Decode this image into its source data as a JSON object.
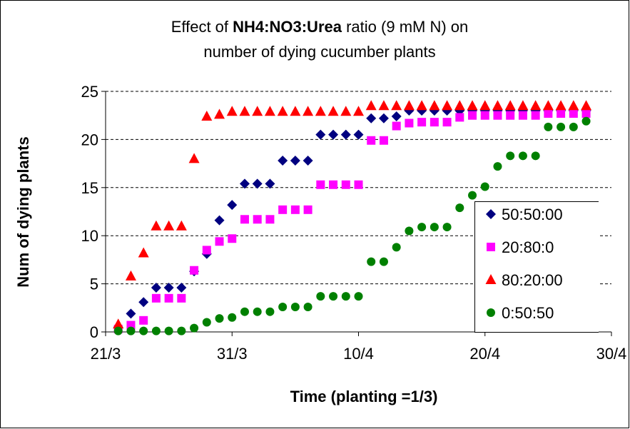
{
  "chart_data": {
    "type": "scatter",
    "title": {
      "prefix": "Effect of",
      "emphasis": "NH4:NO3:Urea",
      "suffix": "ratio (9 mM N) on",
      "line2": "number of dying cucumber plants"
    },
    "x_label": "Time (planting =1/3)",
    "y_label": "Num of dying plants",
    "x": [
      "22/3",
      "23/3",
      "24/3",
      "25/3",
      "26/3",
      "27/3",
      "28/3",
      "29/3",
      "30/3",
      "31/3",
      "1/4",
      "2/4",
      "3/4",
      "4/4",
      "5/4",
      "6/4",
      "7/4",
      "8/4",
      "9/4",
      "10/4",
      "11/4",
      "12/4",
      "13/4",
      "14/4",
      "15/4",
      "16/4",
      "17/4",
      "18/4",
      "19/4",
      "20/4",
      "21/4",
      "22/4",
      "23/4",
      "24/4",
      "25/4",
      "26/4",
      "27/4",
      "28/4"
    ],
    "series": [
      {
        "name": "50:50:00",
        "color": "#000080",
        "marker": "diamond",
        "values": [
          0.5,
          1.9,
          3.1,
          4.6,
          4.6,
          4.6,
          6.3,
          8.1,
          11.6,
          13.2,
          15.4,
          15.4,
          15.4,
          17.8,
          17.8,
          17.8,
          20.5,
          20.5,
          20.5,
          20.5,
          22.2,
          22.2,
          22.4,
          23,
          23,
          23,
          23,
          23,
          23,
          23,
          23,
          23,
          23,
          23,
          23,
          23,
          23,
          23
        ]
      },
      {
        "name": "20:80:0",
        "color": "#ff00ff",
        "marker": "square",
        "values": [
          0.3,
          0.7,
          1.2,
          3.5,
          3.5,
          3.5,
          6.4,
          8.5,
          9.4,
          9.7,
          11.7,
          11.7,
          11.7,
          12.7,
          12.7,
          12.7,
          15.3,
          15.3,
          15.3,
          15.3,
          19.9,
          19.9,
          21.4,
          21.7,
          21.8,
          21.8,
          21.8,
          22.3,
          22.5,
          22.5,
          22.5,
          22.5,
          22.5,
          22.5,
          22.7,
          22.7,
          22.7,
          22.7
        ]
      },
      {
        "name": "80:20:00",
        "color": "#ff0000",
        "marker": "triangle",
        "values": [
          0.8,
          5.8,
          8.2,
          11,
          11,
          11,
          18,
          22.4,
          22.6,
          22.9,
          22.9,
          22.9,
          22.9,
          22.9,
          22.9,
          22.9,
          22.9,
          22.9,
          22.9,
          22.9,
          23.5,
          23.5,
          23.5,
          23.5,
          23.5,
          23.5,
          23.5,
          23.5,
          23.5,
          23.5,
          23.5,
          23.5,
          23.5,
          23.5,
          23.5,
          23.5,
          23.5,
          23.5
        ]
      },
      {
        "name": "0:50:50",
        "color": "#008000",
        "marker": "circle",
        "values": [
          0.1,
          0.1,
          0.1,
          0.1,
          0.1,
          0.1,
          0.4,
          1,
          1.4,
          1.5,
          2.1,
          2.1,
          2.1,
          2.6,
          2.6,
          2.6,
          3.7,
          3.7,
          3.7,
          3.7,
          7.3,
          7.3,
          8.8,
          10.5,
          10.9,
          10.9,
          10.9,
          12.9,
          14.2,
          15.1,
          17.2,
          18.3,
          18.3,
          18.3,
          21.3,
          21.3,
          21.3,
          21.9
        ]
      }
    ],
    "xlim": [
      "21/3",
      "30/4"
    ],
    "xticks": [
      "21/3",
      "31/3",
      "10/4",
      "20/4",
      "30/4"
    ],
    "ylim": [
      0,
      25
    ],
    "yticks": [
      0,
      5,
      10,
      15,
      20,
      25
    ],
    "grid": true,
    "legend": "right"
  }
}
